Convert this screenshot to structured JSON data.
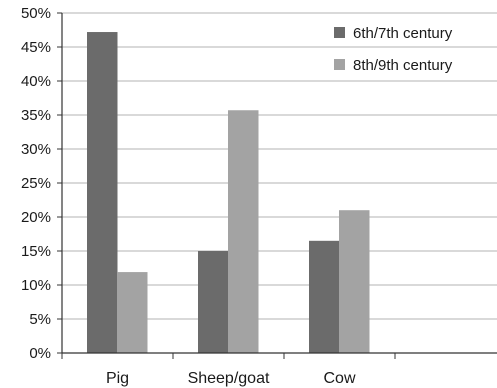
{
  "chart_data": {
    "type": "bar",
    "categories": [
      "Pig",
      "Sheep/goat",
      "Cow"
    ],
    "series": [
      {
        "name": "6th/7th century",
        "values": [
          47.2,
          15.0,
          16.5
        ],
        "color": "#6b6b6b"
      },
      {
        "name": "8th/9th century",
        "values": [
          11.9,
          35.7,
          21.0
        ],
        "color": "#a3a3a3"
      }
    ],
    "ylim": [
      0,
      50
    ],
    "yticks": [
      0,
      5,
      10,
      15,
      20,
      25,
      30,
      35,
      40,
      45,
      50
    ],
    "ytick_labels": [
      "0%",
      "5%",
      "10%",
      "15%",
      "20%",
      "25%",
      "30%",
      "35%",
      "40%",
      "45%",
      "50%"
    ],
    "grid": true,
    "grid_color": "#b3b3b3",
    "legend_position": "top-right",
    "title": "",
    "xlabel": "",
    "ylabel": ""
  }
}
